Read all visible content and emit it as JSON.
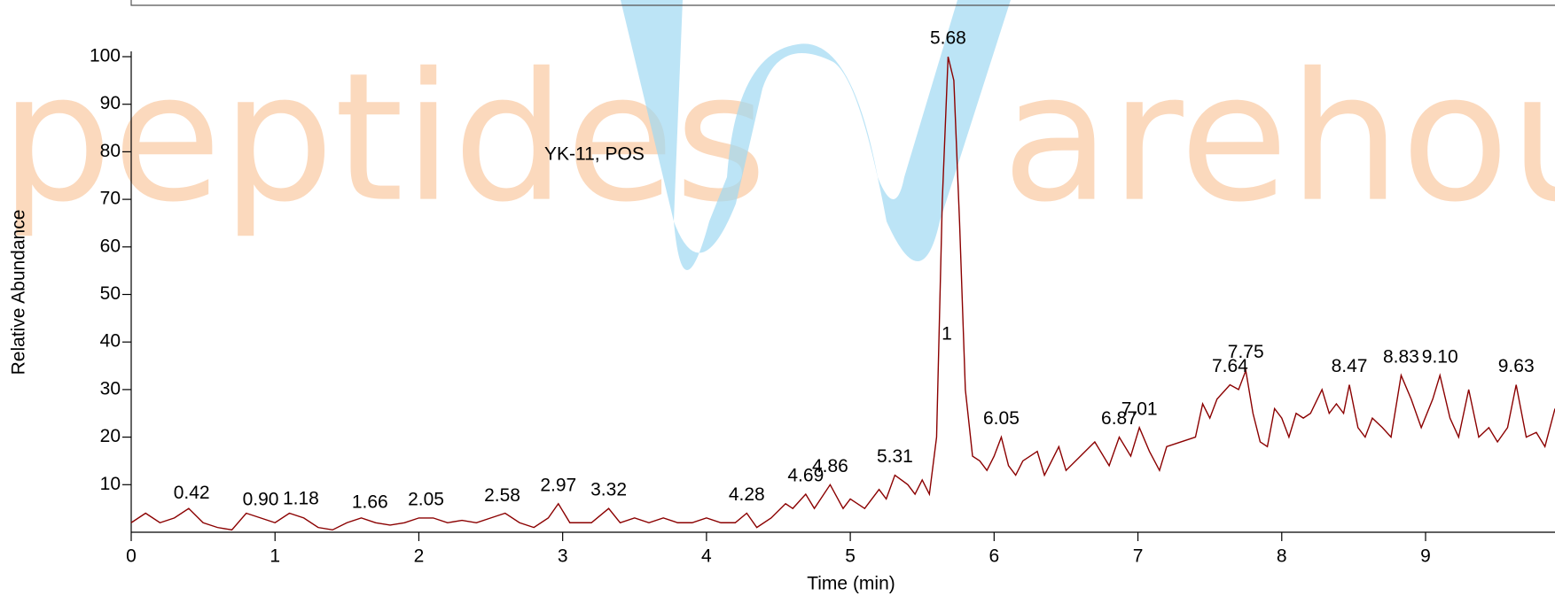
{
  "chart_data": {
    "type": "line",
    "title": "YK-11, POS",
    "peak_number": "1",
    "watermark": [
      "peptides",
      "arehous"
    ],
    "xlabel": "Time (min)",
    "ylabel": "Relative Abundance",
    "x": [
      0,
      0.1,
      0.2,
      0.3,
      0.4,
      0.5,
      0.6,
      0.7,
      0.8,
      0.9,
      1.0,
      1.1,
      1.2,
      1.3,
      1.4,
      1.5,
      1.6,
      1.7,
      1.8,
      1.9,
      2.0,
      2.1,
      2.2,
      2.3,
      2.4,
      2.5,
      2.6,
      2.7,
      2.8,
      2.9,
      2.97,
      3.05,
      3.2,
      3.32,
      3.4,
      3.5,
      3.6,
      3.7,
      3.8,
      3.9,
      4.0,
      4.1,
      4.2,
      4.28,
      4.35,
      4.45,
      4.55,
      4.6,
      4.69,
      4.75,
      4.86,
      4.95,
      5.0,
      5.1,
      5.2,
      5.25,
      5.31,
      5.4,
      5.45,
      5.5,
      5.55,
      5.6,
      5.64,
      5.68,
      5.72,
      5.76,
      5.8,
      5.85,
      5.9,
      5.95,
      6.0,
      6.05,
      6.1,
      6.15,
      6.2,
      6.3,
      6.35,
      6.45,
      6.5,
      6.6,
      6.7,
      6.8,
      6.87,
      6.95,
      7.01,
      7.08,
      7.15,
      7.2,
      7.3,
      7.4,
      7.45,
      7.5,
      7.55,
      7.64,
      7.7,
      7.75,
      7.8,
      7.85,
      7.9,
      7.95,
      8.0,
      8.05,
      8.1,
      8.15,
      8.2,
      8.28,
      8.33,
      8.38,
      8.43,
      8.47,
      8.53,
      8.58,
      8.63,
      8.7,
      8.76,
      8.83,
      8.9,
      8.97,
      9.05,
      9.1,
      9.17,
      9.23,
      9.3,
      9.37,
      9.44,
      9.5,
      9.57,
      9.63,
      9.7,
      9.77,
      9.83,
      9.9
    ],
    "series": [
      {
        "color": "#8b0000",
        "values": [
          2,
          4,
          2,
          3,
          5,
          2,
          1,
          0.5,
          4,
          3,
          2,
          4,
          3,
          1,
          0.5,
          2,
          3,
          2,
          1.5,
          2,
          3,
          3,
          2,
          2.5,
          2,
          3,
          4,
          2,
          1,
          3,
          6,
          2,
          2,
          5,
          2,
          3,
          2,
          3,
          2,
          2,
          3,
          2,
          2,
          4,
          1,
          3,
          6,
          5,
          8,
          5,
          10,
          5,
          7,
          5,
          9,
          7,
          12,
          10,
          8,
          11,
          8,
          20,
          70,
          100,
          95,
          65,
          30,
          16,
          15,
          13,
          16,
          20,
          14,
          12,
          15,
          17,
          12,
          18,
          13,
          16,
          19,
          14,
          20,
          16,
          22,
          17,
          13,
          18,
          19,
          20,
          27,
          24,
          28,
          31,
          30,
          34,
          25,
          19,
          18,
          26,
          24,
          20,
          25,
          24,
          25,
          30,
          25,
          27,
          25,
          31,
          22,
          20,
          24,
          22,
          20,
          33,
          28,
          22,
          28,
          33,
          24,
          20,
          30,
          20,
          22,
          19,
          22,
          31,
          20,
          21,
          18,
          26
        ]
      }
    ],
    "peaks": [
      {
        "value": 0.42,
        "label": "0.42"
      },
      {
        "value": 0.9,
        "label": "0.90"
      },
      {
        "value": 1.18,
        "label": "1.18"
      },
      {
        "value": 1.66,
        "label": "1.66"
      },
      {
        "value": 2.05,
        "label": "2.05"
      },
      {
        "value": 2.58,
        "label": "2.58"
      },
      {
        "value": 2.97,
        "label": "2.97"
      },
      {
        "value": 3.32,
        "label": "3.32"
      },
      {
        "value": 4.28,
        "label": "4.28"
      },
      {
        "value": 4.69,
        "label": "4.69"
      },
      {
        "value": 4.86,
        "label": "4.86"
      },
      {
        "value": 5.31,
        "label": "5.31"
      },
      {
        "value": 5.68,
        "label": "5.68"
      },
      {
        "value": 6.05,
        "label": "6.05"
      },
      {
        "value": 6.87,
        "label": "6.87"
      },
      {
        "value": 7.01,
        "label": "7.01"
      },
      {
        "value": 7.64,
        "label": "7.64"
      },
      {
        "value": 7.75,
        "label": "7.75"
      },
      {
        "value": 8.47,
        "label": "8.47"
      },
      {
        "value": 8.83,
        "label": "8.83"
      },
      {
        "value": 9.1,
        "label": "9.10"
      },
      {
        "value": 9.63,
        "label": "9.63"
      }
    ],
    "xlim": [
      0,
      9.9
    ],
    "ylim": [
      0,
      100
    ],
    "xticks": [
      0,
      1,
      2,
      3,
      4,
      5,
      6,
      7,
      8,
      9
    ],
    "yticks": [
      10,
      20,
      30,
      40,
      50,
      60,
      70,
      80,
      90,
      100
    ]
  }
}
